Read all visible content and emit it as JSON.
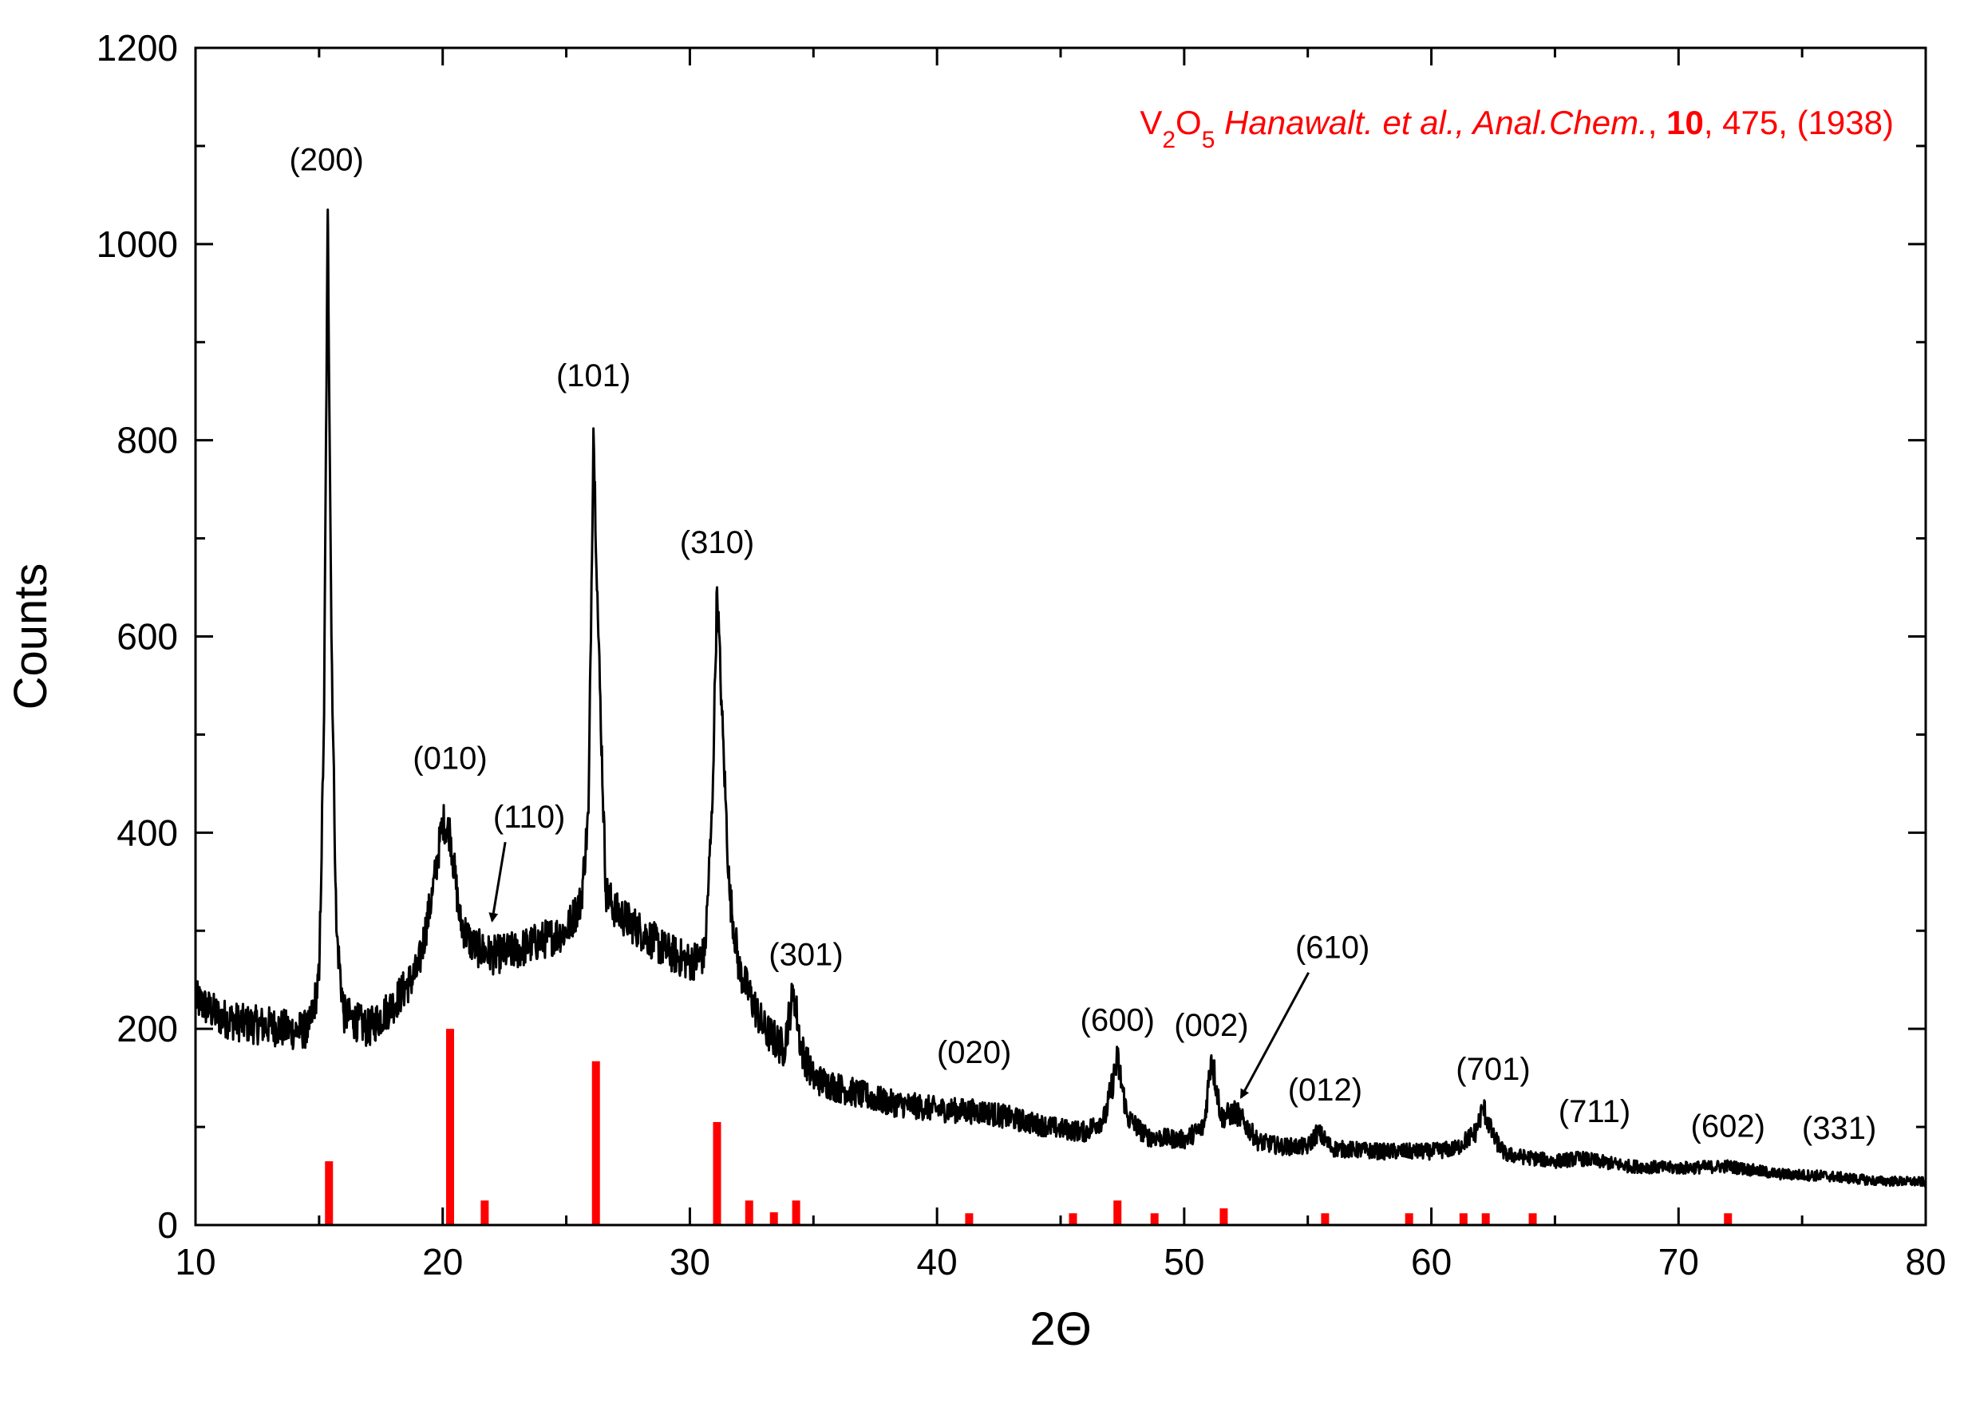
{
  "chart_data": {
    "type": "line",
    "title": "",
    "xlabel": "2Θ",
    "ylabel": "Counts",
    "xlim": [
      10,
      80
    ],
    "ylim": [
      0,
      1200
    ],
    "x_ticks": [
      10,
      20,
      30,
      40,
      50,
      60,
      70,
      80
    ],
    "y_ticks": [
      0,
      200,
      400,
      600,
      800,
      1000,
      1200
    ],
    "grid": false,
    "colors": {
      "pattern": "#000000",
      "reference": "#ff0000"
    },
    "reference": {
      "label_parts": [
        {
          "text": "V",
          "style": "normal"
        },
        {
          "text": "2",
          "style": "sub"
        },
        {
          "text": "O",
          "style": "normal"
        },
        {
          "text": "5",
          "style": "sub"
        },
        {
          "text": " Hanawalt. et al., Anal.Chem.",
          "style": "italic"
        },
        {
          "text": ", ",
          "style": "normal"
        },
        {
          "text": "10",
          "style": "bold"
        },
        {
          "text": ", 475, (1938)",
          "style": "normal"
        }
      ],
      "lines": [
        {
          "x": 15.4,
          "y": 65
        },
        {
          "x": 20.3,
          "y": 200
        },
        {
          "x": 21.7,
          "y": 25
        },
        {
          "x": 26.2,
          "y": 167
        },
        {
          "x": 31.1,
          "y": 105
        },
        {
          "x": 32.4,
          "y": 25
        },
        {
          "x": 33.4,
          "y": 13
        },
        {
          "x": 34.3,
          "y": 25
        },
        {
          "x": 41.3,
          "y": 12
        },
        {
          "x": 45.5,
          "y": 12
        },
        {
          "x": 47.3,
          "y": 25
        },
        {
          "x": 48.8,
          "y": 12
        },
        {
          "x": 51.6,
          "y": 17
        },
        {
          "x": 55.7,
          "y": 12
        },
        {
          "x": 59.1,
          "y": 12
        },
        {
          "x": 61.3,
          "y": 12
        },
        {
          "x": 62.2,
          "y": 12
        },
        {
          "x": 64.1,
          "y": 12
        },
        {
          "x": 72.0,
          "y": 12
        }
      ]
    },
    "series": [
      {
        "points": [
          [
            10,
            230
          ],
          [
            11,
            212
          ],
          [
            12,
            205
          ],
          [
            13,
            203
          ],
          [
            14,
            198
          ],
          [
            14.6,
            200
          ],
          [
            15.0,
            250
          ],
          [
            15.2,
            520
          ],
          [
            15.35,
            1035
          ],
          [
            15.5,
            600
          ],
          [
            15.7,
            300
          ],
          [
            16.0,
            215
          ],
          [
            17,
            200
          ],
          [
            18,
            225
          ],
          [
            19,
            260
          ],
          [
            19.6,
            340
          ],
          [
            20.0,
            412
          ],
          [
            20.3,
            400
          ],
          [
            20.7,
            310
          ],
          [
            21.2,
            285
          ],
          [
            22,
            275
          ],
          [
            23,
            280
          ],
          [
            24,
            290
          ],
          [
            25,
            300
          ],
          [
            25.6,
            330
          ],
          [
            25.9,
            420
          ],
          [
            26.1,
            812
          ],
          [
            26.3,
            600
          ],
          [
            26.6,
            340
          ],
          [
            27,
            320
          ],
          [
            28,
            300
          ],
          [
            29,
            280
          ],
          [
            30,
            268
          ],
          [
            30.6,
            275
          ],
          [
            30.9,
            420
          ],
          [
            31.1,
            650
          ],
          [
            31.3,
            520
          ],
          [
            31.6,
            340
          ],
          [
            32,
            260
          ],
          [
            33,
            200
          ],
          [
            33.8,
            180
          ],
          [
            34.2,
            240
          ],
          [
            34.5,
            180
          ],
          [
            35,
            150
          ],
          [
            36,
            140
          ],
          [
            38,
            125
          ],
          [
            40,
            118
          ],
          [
            42,
            115
          ],
          [
            44,
            103
          ],
          [
            45,
            98
          ],
          [
            46,
            95
          ],
          [
            46.8,
            110
          ],
          [
            47.3,
            168
          ],
          [
            47.7,
            110
          ],
          [
            48.5,
            90
          ],
          [
            50,
            87
          ],
          [
            50.8,
            100
          ],
          [
            51.1,
            173
          ],
          [
            51.5,
            110
          ],
          [
            52.1,
            115
          ],
          [
            53,
            85
          ],
          [
            54,
            80
          ],
          [
            55,
            80
          ],
          [
            55.4,
            95
          ],
          [
            56,
            78
          ],
          [
            58,
            75
          ],
          [
            60,
            75
          ],
          [
            61,
            78
          ],
          [
            61.8,
            95
          ],
          [
            62.1,
            120
          ],
          [
            62.5,
            90
          ],
          [
            63,
            72
          ],
          [
            65,
            65
          ],
          [
            66,
            68
          ],
          [
            68,
            60
          ],
          [
            70,
            58
          ],
          [
            72,
            60
          ],
          [
            74,
            52
          ],
          [
            76,
            50
          ],
          [
            78,
            45
          ],
          [
            80,
            44
          ]
        ]
      }
    ],
    "annotations": [
      {
        "text": "(200)",
        "x": 15.3,
        "y": 1075
      },
      {
        "text": "(010)",
        "x": 20.3,
        "y": 465
      },
      {
        "text": "(110)",
        "x": 23.5,
        "y": 405,
        "arrow_to": [
          22.0,
          310
        ]
      },
      {
        "text": "(101)",
        "x": 26.1,
        "y": 855
      },
      {
        "text": "(310)",
        "x": 31.1,
        "y": 685
      },
      {
        "text": "(301)",
        "x": 34.7,
        "y": 265
      },
      {
        "text": "(020)",
        "x": 41.5,
        "y": 165
      },
      {
        "text": "(600)",
        "x": 47.3,
        "y": 198
      },
      {
        "text": "(002)",
        "x": 51.1,
        "y": 193
      },
      {
        "text": "(610)",
        "x": 56.0,
        "y": 272,
        "arrow_to": [
          52.3,
          130
        ]
      },
      {
        "text": "(012)",
        "x": 55.7,
        "y": 127
      },
      {
        "text": "(701)",
        "x": 62.5,
        "y": 148
      },
      {
        "text": "(711)",
        "x": 66.6,
        "y": 105
      },
      {
        "text": "(602)",
        "x": 72.0,
        "y": 90
      },
      {
        "text": "(331)",
        "x": 76.5,
        "y": 88
      }
    ]
  }
}
